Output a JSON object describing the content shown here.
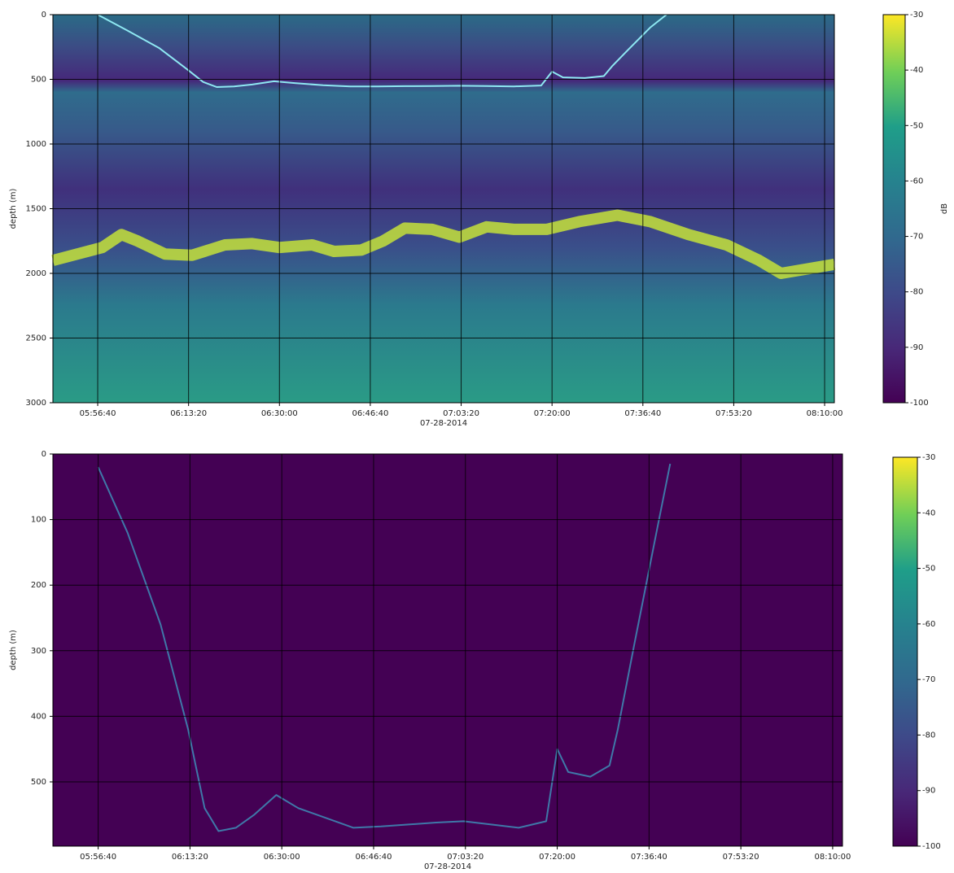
{
  "chart_data": [
    {
      "type": "echogram",
      "xlabel": "07-28-2014",
      "ylabel": "depth (m)",
      "xlim": [
        "05:48:27",
        "08:11:47"
      ],
      "xticks": [
        "05:56:40",
        "06:13:20",
        "06:30:00",
        "06:46:40",
        "07:03:20",
        "07:20:00",
        "07:36:40",
        "07:53:20",
        "08:10:00"
      ],
      "ylim": [
        3000,
        0
      ],
      "yticks": [
        0,
        500,
        1000,
        1500,
        2000,
        2500,
        3000
      ],
      "grid": true,
      "series": [
        {
          "color": "#8ee8f2",
          "x": [
            "05:56:40",
            "06:02:00",
            "06:08:00",
            "06:13:00",
            "06:16:00",
            "06:18:30",
            "06:21:40",
            "06:25:00",
            "06:29:00",
            "06:33:00",
            "06:38:00",
            "06:43:00",
            "06:48:00",
            "06:53:00",
            "06:58:00",
            "07:03:00",
            "07:08:00",
            "07:13:00",
            "07:18:00",
            "07:20:00",
            "07:22:00",
            "07:26:00",
            "07:29:30",
            "07:31:00",
            "07:34:00",
            "07:38:00",
            "07:41:00"
          ],
          "values": [
            0,
            120,
            260,
            420,
            520,
            560,
            555,
            540,
            515,
            530,
            545,
            555,
            555,
            553,
            552,
            550,
            552,
            555,
            548,
            440,
            485,
            490,
            475,
            400,
            270,
            100,
            0
          ]
        },
        {
          "color": "#c6e23a",
          "x": [
            "05:48:27",
            "05:57:30",
            "06:01:00",
            "06:04:00",
            "06:09:00",
            "06:14:00",
            "06:20:00",
            "06:25:00",
            "06:30:00",
            "06:36:00",
            "06:40:00",
            "06:45:00",
            "06:49:00",
            "06:53:00",
            "06:58:00",
            "07:03:00",
            "07:08:00",
            "07:13:00",
            "07:19:00",
            "07:25:00",
            "07:32:00",
            "07:38:00",
            "07:45:00",
            "07:52:00",
            "07:58:00",
            "08:02:00",
            "08:11:47"
          ],
          "values": [
            1900,
            1800,
            1700,
            1750,
            1850,
            1860,
            1780,
            1770,
            1800,
            1780,
            1830,
            1820,
            1750,
            1650,
            1660,
            1720,
            1640,
            1660,
            1660,
            1600,
            1550,
            1600,
            1700,
            1780,
            1900,
            2000,
            1930
          ]
        }
      ],
      "colorbar": {
        "clim": [
          -100,
          -30
        ],
        "ticks": [
          -30,
          -40,
          -50,
          -60,
          -70,
          -80,
          -90,
          -100
        ],
        "label": "dB"
      }
    },
    {
      "type": "echogram",
      "xlabel": "07-28-2014",
      "ylabel": "depth (m)",
      "xlim": [
        "05:48:27",
        "08:11:47"
      ],
      "xticks": [
        "05:56:40",
        "06:13:20",
        "06:30:00",
        "06:46:40",
        "07:03:20",
        "07:20:00",
        "07:36:40",
        "07:53:20",
        "08:10:00"
      ],
      "ylim": [
        598,
        0
      ],
      "yticks": [
        0,
        100,
        200,
        300,
        400,
        500
      ],
      "grid": true,
      "series": [
        {
          "color": "#3f78a8",
          "x": [
            "05:56:40",
            "06:02:00",
            "06:08:00",
            "06:13:00",
            "06:16:00",
            "06:18:30",
            "06:21:40",
            "06:25:00",
            "06:29:00",
            "06:33:00",
            "06:38:00",
            "06:43:00",
            "06:48:00",
            "06:53:00",
            "06:58:00",
            "07:03:00",
            "07:08:00",
            "07:13:00",
            "07:18:00",
            "07:20:00",
            "07:22:00",
            "07:26:00",
            "07:29:30",
            "07:31:00",
            "07:34:00",
            "07:38:00",
            "07:40:30"
          ],
          "values": [
            20,
            120,
            260,
            420,
            540,
            575,
            570,
            550,
            520,
            540,
            555,
            570,
            568,
            565,
            562,
            560,
            565,
            570,
            560,
            450,
            485,
            492,
            475,
            420,
            290,
            120,
            15
          ]
        }
      ],
      "colorbar": {
        "clim": [
          -100,
          -30
        ],
        "ticks": [
          -30,
          -40,
          -50,
          -60,
          -70,
          -80,
          -90,
          -100
        ]
      }
    }
  ]
}
